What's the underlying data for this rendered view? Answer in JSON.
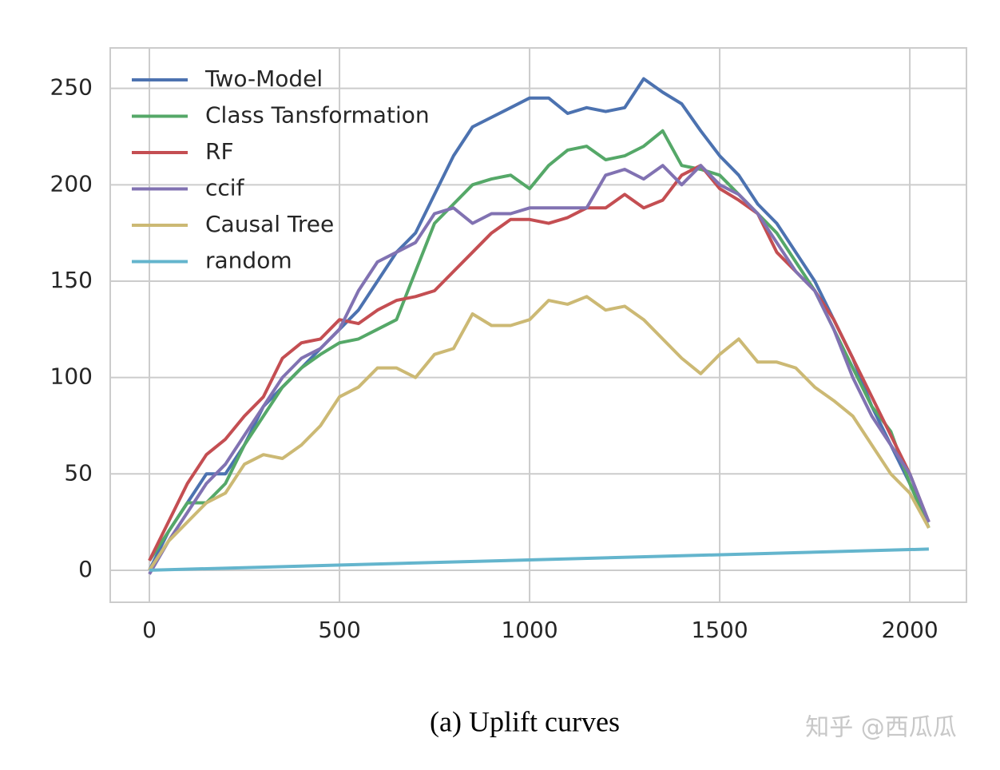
{
  "chart_data": {
    "type": "line",
    "caption": "(a) Uplift curves",
    "watermark": "知乎 @西瓜瓜",
    "x": [
      0,
      50,
      100,
      150,
      200,
      250,
      300,
      350,
      400,
      450,
      500,
      550,
      600,
      650,
      700,
      750,
      800,
      850,
      900,
      950,
      1000,
      1050,
      1100,
      1150,
      1200,
      1250,
      1300,
      1350,
      1400,
      1450,
      1500,
      1550,
      1600,
      1650,
      1700,
      1750,
      1800,
      1850,
      1900,
      1950,
      2000,
      2050
    ],
    "series": [
      {
        "name": "Two-Model",
        "color": "#4c72b0",
        "values": [
          0,
          20,
          35,
          50,
          50,
          65,
          85,
          95,
          105,
          115,
          125,
          135,
          150,
          165,
          175,
          195,
          215,
          230,
          235,
          240,
          245,
          245,
          237,
          240,
          238,
          240,
          255,
          248,
          242,
          228,
          215,
          205,
          190,
          180,
          165,
          150,
          130,
          110,
          85,
          65,
          45,
          25
        ]
      },
      {
        "name": "Class Tansformation",
        "color": "#55a868",
        "values": [
          5,
          20,
          35,
          35,
          45,
          65,
          80,
          95,
          105,
          112,
          118,
          120,
          125,
          130,
          155,
          180,
          190,
          200,
          203,
          205,
          198,
          210,
          218,
          220,
          213,
          215,
          220,
          228,
          210,
          208,
          205,
          195,
          185,
          175,
          160,
          145,
          125,
          105,
          85,
          72,
          45,
          22
        ]
      },
      {
        "name": "RF",
        "color": "#c44e52",
        "values": [
          5,
          25,
          45,
          60,
          68,
          80,
          90,
          110,
          118,
          120,
          130,
          128,
          135,
          140,
          142,
          145,
          155,
          165,
          175,
          182,
          182,
          180,
          183,
          188,
          188,
          195,
          188,
          192,
          205,
          210,
          198,
          192,
          185,
          165,
          155,
          145,
          130,
          110,
          90,
          70,
          50,
          25
        ]
      },
      {
        "name": "ccif",
        "color": "#8172b2",
        "values": [
          -2,
          15,
          30,
          45,
          55,
          70,
          85,
          100,
          110,
          115,
          125,
          145,
          160,
          165,
          170,
          185,
          188,
          180,
          185,
          185,
          188,
          188,
          188,
          188,
          205,
          208,
          203,
          210,
          200,
          210,
          200,
          195,
          185,
          170,
          155,
          145,
          125,
          100,
          80,
          65,
          50,
          25
        ]
      },
      {
        "name": "Causal Tree",
        "color": "#ccb974",
        "values": [
          0,
          15,
          25,
          35,
          40,
          55,
          60,
          58,
          65,
          75,
          90,
          95,
          105,
          105,
          100,
          112,
          115,
          133,
          127,
          127,
          130,
          140,
          138,
          142,
          135,
          137,
          130,
          120,
          110,
          102,
          112,
          120,
          108,
          108,
          105,
          95,
          88,
          80,
          65,
          50,
          40,
          22
        ]
      },
      {
        "name": "random",
        "color": "#64b5cd",
        "x": [
          0,
          2050
        ],
        "values": [
          0,
          11
        ]
      }
    ],
    "xlim": [
      -103,
      2149
    ],
    "ylim": [
      -16.6,
      271
    ],
    "xticks": [
      0,
      500,
      1000,
      1500,
      2000
    ],
    "yticks": [
      0,
      50,
      100,
      150,
      200,
      250
    ],
    "grid": true,
    "legend": "upper-left"
  }
}
